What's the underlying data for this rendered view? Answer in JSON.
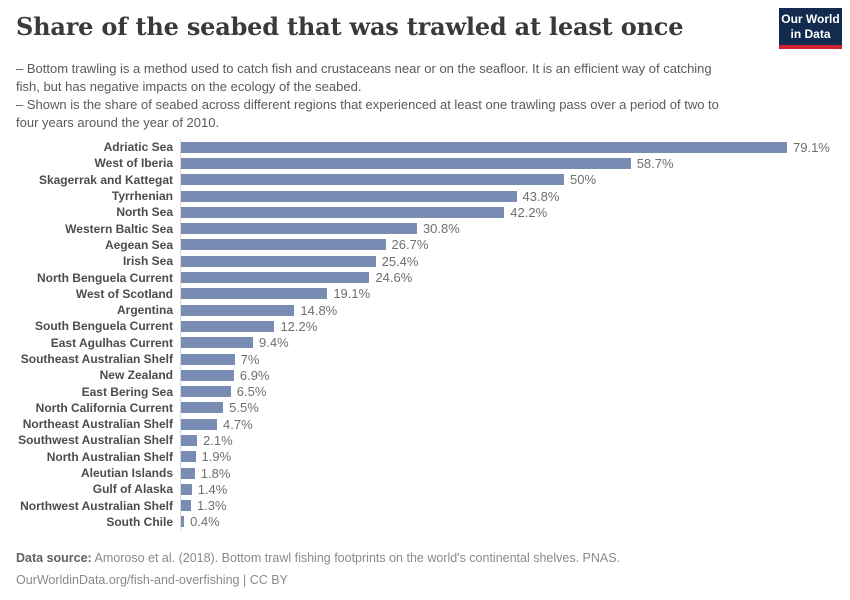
{
  "header": {
    "title": "Share of the seabed that was trawled at least once",
    "subtitle": [
      "– Bottom trawling is a method used to catch fish and crustaceans near or on the seafloor. It is an efficient way of catching fish, but has negative impacts on the ecology of the seabed.",
      "– Shown is the share of seabed across different regions that experienced at least one trawling pass over a period of two to four years around the year of 2010."
    ],
    "logo": {
      "line1": "Our World",
      "line2": "in Data"
    }
  },
  "chart_data": {
    "type": "bar",
    "orientation": "horizontal",
    "title": "Share of the seabed that was trawled at least once",
    "xlabel": "",
    "ylabel": "",
    "xlim": [
      0,
      85
    ],
    "grid": false,
    "legend": false,
    "bar_color": "#788cb4",
    "categories": [
      "Adriatic Sea",
      "West of Iberia",
      "Skagerrak and Kattegat",
      "Tyrrhenian",
      "North Sea",
      "Western Baltic Sea",
      "Aegean Sea",
      "Irish Sea",
      "North Benguela Current",
      "West of Scotland",
      "Argentina",
      "South Benguela Current",
      "East Agulhas Current",
      "Southeast Australian Shelf",
      "New Zealand",
      "East Bering Sea",
      "North California Current",
      "Northeast Australian Shelf",
      "Southwest Australian Shelf",
      "North Australian Shelf",
      "Aleutian Islands",
      "Gulf of Alaska",
      "Northwest Australian Shelf",
      "South Chile"
    ],
    "values": [
      79.1,
      58.7,
      50,
      43.8,
      42.2,
      30.8,
      26.7,
      25.4,
      24.6,
      19.1,
      14.8,
      12.2,
      9.4,
      7,
      6.9,
      6.5,
      5.5,
      4.7,
      2.1,
      1.9,
      1.8,
      1.4,
      1.3,
      0.4
    ],
    "value_labels": [
      "79.1%",
      "58.7%",
      "50%",
      "43.8%",
      "42.2%",
      "30.8%",
      "26.7%",
      "25.4%",
      "24.6%",
      "19.1%",
      "14.8%",
      "12.2%",
      "9.4%",
      "7%",
      "6.9%",
      "6.5%",
      "5.5%",
      "4.7%",
      "2.1%",
      "1.9%",
      "1.8%",
      "1.4%",
      "1.3%",
      "0.4%"
    ]
  },
  "footer": {
    "source_label": "Data source:",
    "source_text": " Amoroso et al. (2018). Bottom trawl fishing footprints on the world's continental shelves. PNAS.",
    "link": "OurWorldinData.org/fish-and-overfishing",
    "separator": " | ",
    "license": "CC BY"
  },
  "colors": {
    "bar": "#788cb4",
    "axis_line": "#d9d9d9",
    "title_text": "#3a3a3a",
    "subtitle_text": "#5a5a5a",
    "category_label": "#4c4c4c",
    "value_label": "#6f6f6f",
    "footer_text": "#8a8a8a",
    "logo_background": "#122b4e",
    "logo_accent": "#d0232e"
  }
}
